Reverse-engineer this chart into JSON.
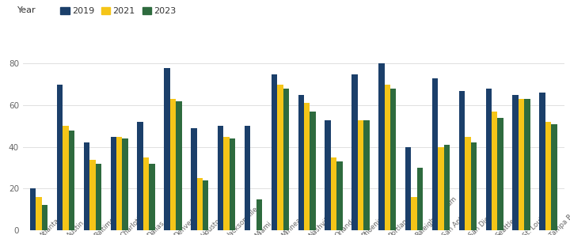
{
  "cities": [
    "Atlanta",
    "Austin",
    "Baltimore",
    "Charlotte",
    "Dallas",
    "Denver",
    "Houston",
    "Jacksonville",
    "Miami",
    "Minneapolis",
    "Nashville",
    "Orlando",
    "Phoenix",
    "Portland",
    "Raleigh-Durham",
    "San Antonio",
    "San Diego",
    "Seattle",
    "St. Louis",
    "Tampa Bay"
  ],
  "values_2019": [
    20,
    70,
    42,
    45,
    52,
    78,
    49,
    50,
    50,
    75,
    65,
    53,
    75,
    80,
    40,
    73,
    67,
    68,
    65,
    66
  ],
  "values_2021": [
    16,
    50,
    34,
    45,
    35,
    63,
    25,
    45,
    0,
    70,
    61,
    35,
    53,
    70,
    16,
    40,
    45,
    57,
    63,
    52
  ],
  "values_2023": [
    12,
    48,
    32,
    44,
    32,
    62,
    24,
    44,
    15,
    68,
    57,
    33,
    53,
    68,
    30,
    41,
    42,
    54,
    63,
    51
  ],
  "color_2019": "#1b3f6a",
  "color_2021": "#f5c518",
  "color_2023": "#2e6b3e",
  "background_color": "#ffffff",
  "grid_color": "#e0e0e0",
  "yticks": [
    0,
    20,
    40,
    60,
    80
  ],
  "legend_title": "Year",
  "bar_width": 0.22,
  "figsize": [
    7.2,
    2.97
  ],
  "dpi": 100
}
